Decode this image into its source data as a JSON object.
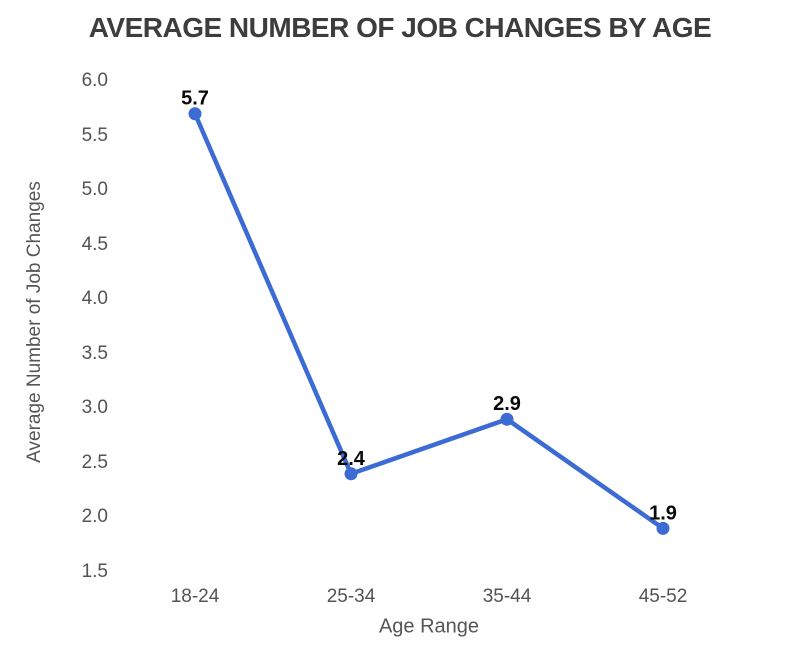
{
  "chart_data": {
    "type": "line",
    "title": "AVERAGE NUMBER OF JOB CHANGES BY AGE",
    "xlabel": "Age Range",
    "ylabel": "Average Number of Job Changes",
    "categories": [
      "18-24",
      "25-34",
      "35-44",
      "45-52"
    ],
    "series": [
      {
        "name": "Average Number of Job Changes",
        "values": [
          5.7,
          2.4,
          2.9,
          1.9
        ],
        "point_labels": [
          "5.7",
          "2.4",
          "2.9",
          "1.9"
        ]
      }
    ],
    "ylim": [
      1.5,
      6.0
    ],
    "ytick_step": 0.5,
    "yticks": [
      "6.0",
      "5.5",
      "5.0",
      "4.5",
      "4.0",
      "3.5",
      "3.0",
      "2.5",
      "2.0",
      "1.5"
    ],
    "grid": false,
    "legend": "none",
    "axes_lines": false,
    "colors": {
      "line": "#3b6bd3",
      "marker": "#3b6bd3",
      "point_label": "#0a0a0a",
      "tick_text": "#535353",
      "axis_title_text": "#565656",
      "title_text": "#3d3d3d",
      "background": "#ffffff"
    }
  }
}
